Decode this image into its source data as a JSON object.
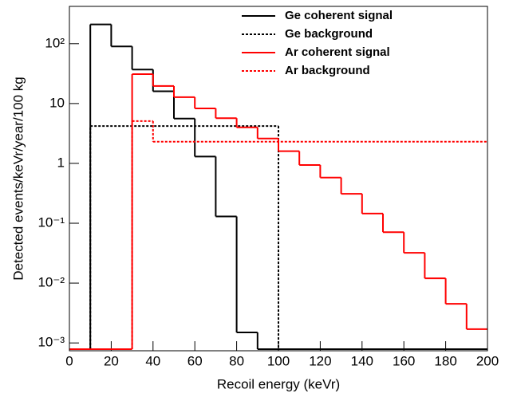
{
  "chart_data": {
    "type": "histogram",
    "x_label": "Recoil energy (keVr)",
    "y_label": "Detected events/keVr/year/100 kg",
    "xlim": [
      0,
      200
    ],
    "ylim": [
      0.00074,
      420
    ],
    "log_y": true,
    "xticks": [
      0,
      20,
      40,
      60,
      80,
      100,
      120,
      140,
      160,
      180,
      200
    ],
    "yticks": [
      {
        "value": 0.001,
        "label": "10⁻³"
      },
      {
        "value": 0.01,
        "label": "10⁻²"
      },
      {
        "value": 0.1,
        "label": "10⁻¹"
      },
      1,
      10,
      {
        "value": 100,
        "label": "10²"
      }
    ],
    "legend": "top-right",
    "series": [
      {
        "name": "Ge coherent signal",
        "color": "#000000",
        "style": "solid",
        "bins": [
          10,
          20,
          30,
          40,
          50,
          60,
          70,
          80,
          90
        ],
        "values": [
          210,
          90,
          37,
          16,
          5.6,
          1.3,
          0.13,
          0.0015
        ]
      },
      {
        "name": "Ge background",
        "color": "#000000",
        "style": "dotted",
        "bins": [
          10,
          100
        ],
        "values": [
          4.2
        ]
      },
      {
        "name": "Ar coherent signal",
        "color": "#ff0000",
        "style": "solid",
        "bins": [
          30,
          40,
          50,
          60,
          70,
          80,
          90,
          100,
          110,
          120,
          130,
          140,
          150,
          160,
          170,
          180,
          190,
          200
        ],
        "values": [
          31,
          19.6,
          12.8,
          8.3,
          5.7,
          4,
          2.6,
          1.6,
          0.94,
          0.58,
          0.31,
          0.145,
          0.071,
          0.032,
          0.012,
          0.0045,
          0.0017
        ]
      },
      {
        "name": "Ar background",
        "color": "#ff0000",
        "style": "dotted",
        "bins": [
          30,
          40,
          200
        ],
        "values": [
          5.1,
          2.3
        ]
      }
    ]
  }
}
